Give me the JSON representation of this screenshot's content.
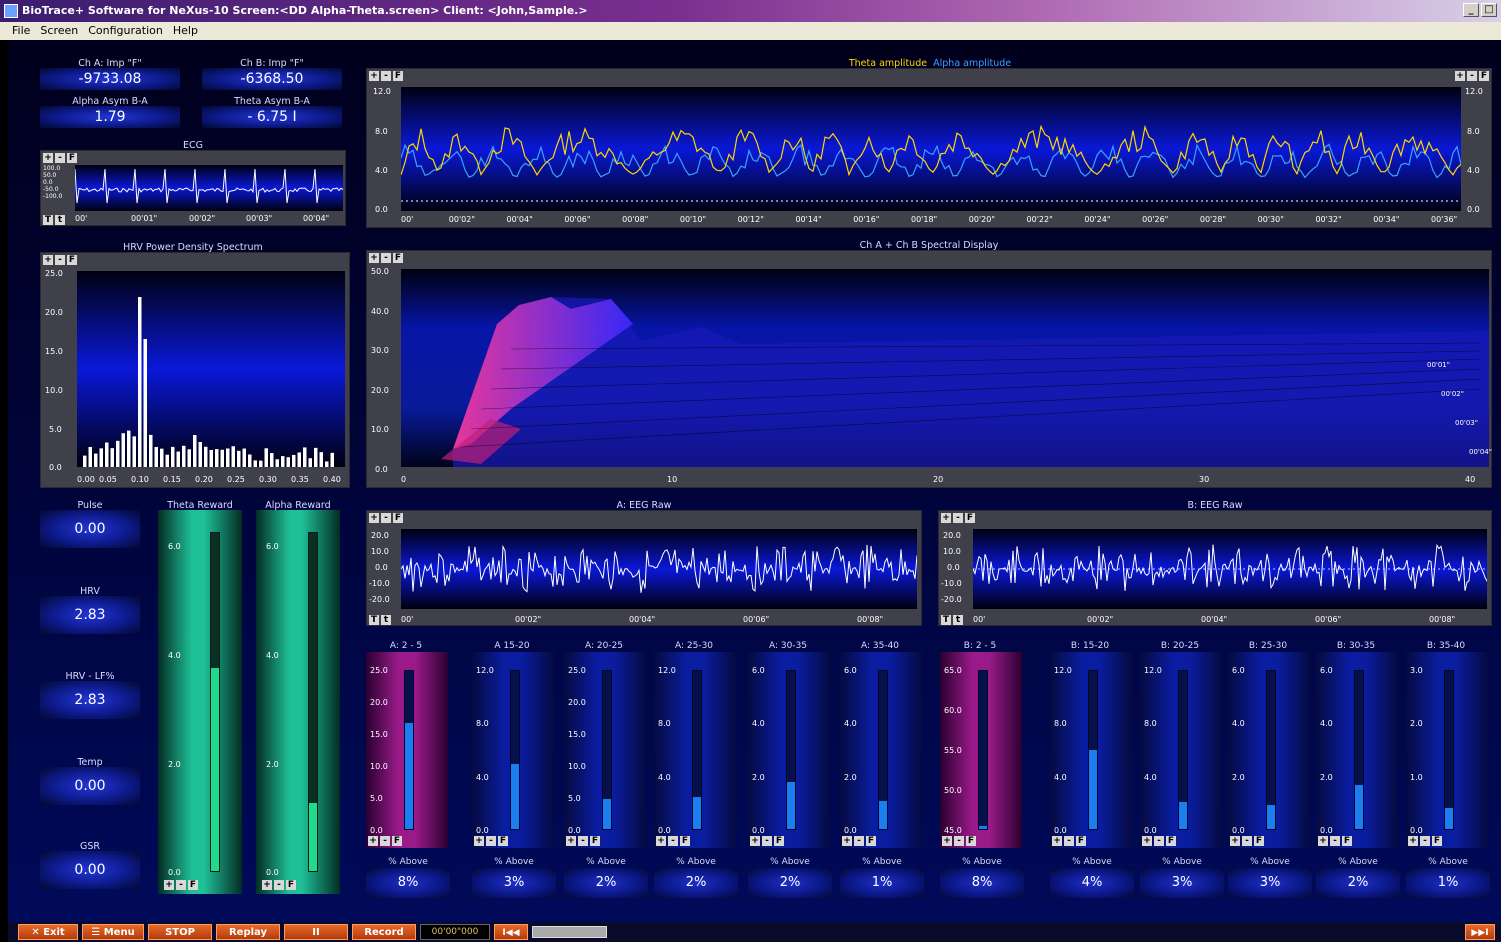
{
  "window": {
    "title": "BioTrace+ Software for NeXus-10     Screen:<DD Alpha-Theta.screen>  Client: <John,Sample.>",
    "buttons": [
      "_",
      "□"
    ]
  },
  "menu": [
    "File",
    "Screen",
    "Configuration",
    "Help"
  ],
  "numeric_boxes": {
    "ch_a": {
      "label": "Ch A: Imp \"F\"",
      "value": "-9733.08"
    },
    "ch_b": {
      "label": "Ch B: Imp \"F\"",
      "value": "-6368.50"
    },
    "alpha_asym": {
      "label": "Alpha Asym B-A",
      "value": "1.79"
    },
    "theta_asym": {
      "label": "Theta Asym B-A",
      "value": "-  6.75  I"
    },
    "pulse": {
      "label": "Pulse",
      "value": "0.00"
    },
    "hrv": {
      "label": "HRV",
      "value": "2.83"
    },
    "hrv_lf": {
      "label": "HRV - LF%",
      "value": "2.83"
    },
    "temp": {
      "label": "Temp",
      "value": "0.00"
    },
    "gsr": {
      "label": "GSR",
      "value": "0.00"
    }
  },
  "toolbar": {
    "plus": "+",
    "minus": "-",
    "f": "F",
    "t1": "T",
    "t2": "t"
  },
  "ecg": {
    "title": "ECG",
    "yticks": [
      "100.0",
      "50.0",
      "0.0",
      "-50.0",
      "-100.0"
    ],
    "xticks": [
      "00'",
      "00'01\"",
      "00'02\"",
      "00'03\"",
      "00'04\""
    ]
  },
  "amplitude": {
    "theta_label": "Theta amplitude",
    "alpha_label": "Alpha amplitude",
    "theta_color": "#ffd700",
    "alpha_color": "#3aa0ff",
    "yticks": [
      "12.0",
      "8.0",
      "4.0",
      "0.0"
    ],
    "xticks": [
      "00'",
      "00'02\"",
      "00'04\"",
      "00'06\"",
      "00'08\"",
      "00'10\"",
      "00'12\"",
      "00'14\"",
      "00'16\"",
      "00'18\"",
      "00'20\"",
      "00'22\"",
      "00'24\"",
      "00'26\"",
      "00'28\"",
      "00'30\"",
      "00'32\"",
      "00'34\"",
      "00'36\""
    ]
  },
  "hrv_spectrum": {
    "title": "HRV Power Density Spectrum",
    "yticks": [
      "25.0",
      "20.0",
      "15.0",
      "10.0",
      "5.0",
      "0.0"
    ],
    "xticks": [
      "0.00",
      "0.05",
      "0.10",
      "0.15",
      "0.20",
      "0.25",
      "0.30",
      "0.35",
      "0.40"
    ]
  },
  "spectral": {
    "title": "Ch A + Ch B Spectral Display",
    "yticks": [
      "50.0",
      "40.0",
      "30.0",
      "20.0",
      "10.0",
      "0.0"
    ],
    "xticks": [
      "0",
      "10",
      "20",
      "30",
      "40"
    ],
    "time_markers": [
      "00'01\"",
      "00'02\"",
      "00'03\"",
      "00'04\""
    ]
  },
  "eeg_a": {
    "title": "A: EEG Raw",
    "yticks": [
      "20.0",
      "10.0",
      "0.0",
      "-10.0",
      "-20.0"
    ],
    "xticks": [
      "00'",
      "00'02\"",
      "00'04\"",
      "00'06\"",
      "00'08\""
    ]
  },
  "eeg_b": {
    "title": "B: EEG Raw",
    "yticks": [
      "20.0",
      "10.0",
      "0.0",
      "-10.0",
      "-20.0"
    ],
    "xticks": [
      "00'",
      "00'02\"",
      "00'04\"",
      "00'06\"",
      "00'08\""
    ]
  },
  "rewards": {
    "theta": {
      "label": "Theta Reward",
      "yticks": [
        "6.0",
        "4.0",
        "2.0",
        "0.0"
      ],
      "level_fraction": 0.6
    },
    "alpha": {
      "label": "Alpha Reward",
      "yticks": [
        "6.0",
        "4.0",
        "2.0",
        "0.0"
      ],
      "level_fraction": 0.2
    }
  },
  "bands": [
    {
      "label": "A: 2 - 5",
      "ticks": [
        "25.0",
        "20.0",
        "15.0",
        "10.0",
        "5.0",
        "0.0"
      ],
      "level": 0.67,
      "above_label": "% Above",
      "above": "8%",
      "hot": true
    },
    {
      "label": "A 15-20",
      "ticks": [
        "12.0",
        "8.0",
        "4.0",
        "0.0"
      ],
      "level": 0.41,
      "above_label": "% Above",
      "above": "3%",
      "hot": false
    },
    {
      "label": "A: 20-25",
      "ticks": [
        "25.0",
        "20.0",
        "15.0",
        "10.0",
        "5.0",
        "0.0"
      ],
      "level": 0.19,
      "above_label": "% Above",
      "above": "2%",
      "hot": false
    },
    {
      "label": "A: 25-30",
      "ticks": [
        "12.0",
        "8.0",
        "4.0",
        "0.0"
      ],
      "level": 0.2,
      "above_label": "% Above",
      "above": "2%",
      "hot": false
    },
    {
      "label": "A: 30-35",
      "ticks": [
        "6.0",
        "4.0",
        "2.0",
        "0.0"
      ],
      "level": 0.3,
      "above_label": "% Above",
      "above": "2%",
      "hot": false
    },
    {
      "label": "A: 35-40",
      "ticks": [
        "6.0",
        "4.0",
        "2.0",
        "0.0"
      ],
      "level": 0.18,
      "above_label": "% Above",
      "above": "1%",
      "hot": false
    },
    {
      "label": "B: 2 - 5",
      "ticks": [
        "65.0",
        "60.0",
        "55.0",
        "50.0",
        "45.0"
      ],
      "level": 0.02,
      "above_label": "% Above",
      "above": "8%",
      "hot": true
    },
    {
      "label": "B: 15-20",
      "ticks": [
        "12.0",
        "8.0",
        "4.0",
        "0.0"
      ],
      "level": 0.5,
      "above_label": "% Above",
      "above": "4%",
      "hot": false
    },
    {
      "label": "B: 20-25",
      "ticks": [
        "12.0",
        "8.0",
        "4.0",
        "0.0"
      ],
      "level": 0.17,
      "above_label": "% Above",
      "above": "3%",
      "hot": false
    },
    {
      "label": "B: 25-30",
      "ticks": [
        "6.0",
        "4.0",
        "2.0",
        "0.0"
      ],
      "level": 0.15,
      "above_label": "% Above",
      "above": "3%",
      "hot": false
    },
    {
      "label": "B: 30-35",
      "ticks": [
        "6.0",
        "4.0",
        "2.0",
        "0.0"
      ],
      "level": 0.28,
      "above_label": "% Above",
      "above": "2%",
      "hot": false
    },
    {
      "label": "B: 35-40",
      "ticks": [
        "3.0",
        "2.0",
        "1.0",
        "0.0"
      ],
      "level": 0.13,
      "above_label": "% Above",
      "above": "1%",
      "hot": false
    }
  ],
  "bottom": {
    "exit": "Exit",
    "menu": "Menu",
    "stop": "STOP",
    "replay": "Replay",
    "pause": "II",
    "record": "Record",
    "time": "00'00\"000",
    "rewind": "I◀◀",
    "forward": "▶▶I"
  }
}
